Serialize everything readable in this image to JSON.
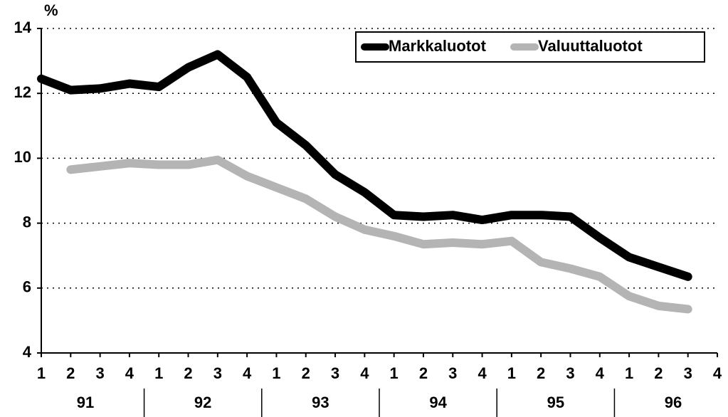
{
  "chart_data": {
    "type": "line",
    "ylabel": "%",
    "categories": [
      "1",
      "2",
      "3",
      "4",
      "1",
      "2",
      "3",
      "4",
      "1",
      "2",
      "3",
      "4",
      "1",
      "2",
      "3",
      "4",
      "1",
      "2",
      "3",
      "4",
      "1",
      "2",
      "3",
      "4"
    ],
    "year_labels": [
      "91",
      "92",
      "93",
      "94",
      "95",
      "96"
    ],
    "series": [
      {
        "name": "Markkaluotot",
        "color": "#000000",
        "values": [
          12.45,
          12.1,
          12.15,
          12.3,
          12.2,
          12.8,
          13.2,
          12.5,
          11.1,
          10.4,
          9.5,
          8.95,
          8.25,
          8.2,
          8.25,
          8.1,
          8.25,
          8.25,
          8.2,
          7.55,
          6.95,
          6.65,
          6.35,
          null
        ]
      },
      {
        "name": "Valuuttaluotot",
        "color": "#b4b4b4",
        "values": [
          null,
          9.65,
          9.75,
          9.85,
          9.8,
          9.8,
          9.95,
          9.45,
          9.1,
          8.75,
          8.2,
          7.8,
          7.6,
          7.35,
          7.4,
          7.35,
          7.45,
          6.8,
          6.6,
          6.35,
          5.75,
          5.45,
          5.35,
          null
        ]
      }
    ],
    "ylim": [
      4,
      14
    ],
    "yticks": [
      4,
      6,
      8,
      10,
      12,
      14
    ],
    "grid": true,
    "legend": "upper right"
  }
}
